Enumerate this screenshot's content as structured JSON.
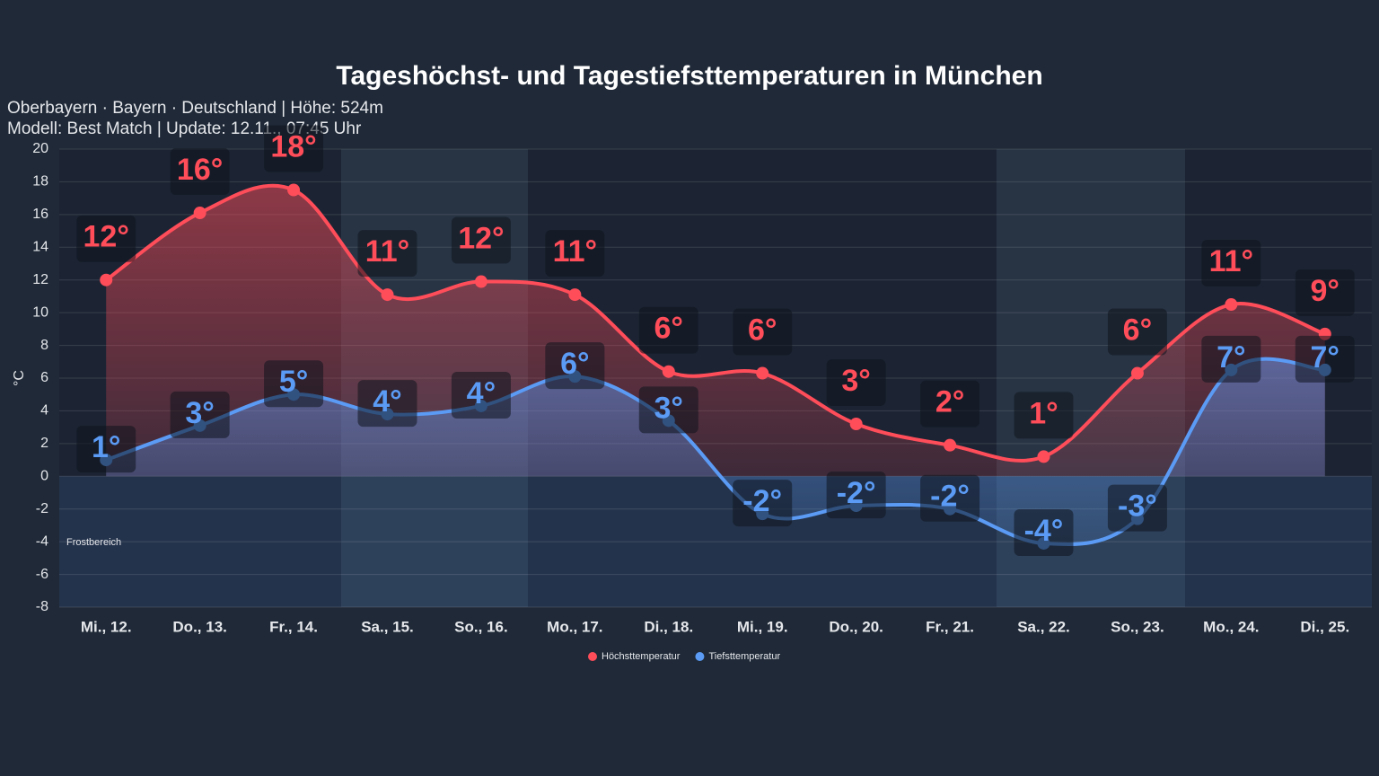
{
  "chart_data": {
    "type": "line",
    "title": "Tageshöchst- und Tagestiefsttemperaturen in München",
    "subtitle_lines": [
      "Oberbayern · Bayern · Deutschland | Höhe: 524m",
      "Modell: Best Match | Update: 12.11., 07:45 Uhr"
    ],
    "ylabel": "°C",
    "annotation": "Frostbereich",
    "categories": [
      "Mi., 12.",
      "Do., 13.",
      "Fr., 14.",
      "Sa., 15.",
      "So., 16.",
      "Mo., 17.",
      "Di., 18.",
      "Mi., 19.",
      "Do., 20.",
      "Fr., 21.",
      "Sa., 22.",
      "So., 23.",
      "Mo., 24.",
      "Di., 25."
    ],
    "series": [
      {
        "name": "Höchsttemperatur",
        "color": "#ff4d5a",
        "values": [
          12,
          16.1,
          17.5,
          11.1,
          11.9,
          11.1,
          6.4,
          6.3,
          3.2,
          1.9,
          1.2,
          6.3,
          10.5,
          8.7
        ],
        "value_labels": [
          "12°",
          "16°",
          "18°",
          "11°",
          "12°",
          "11°",
          "6°",
          "6°",
          "3°",
          "2°",
          "1°",
          "6°",
          "11°",
          "9°"
        ]
      },
      {
        "name": "Tiefsttemperatur",
        "color": "#5b9bf5",
        "values": [
          1,
          3.1,
          5,
          3.8,
          4.3,
          6.1,
          3.4,
          -2.3,
          -1.8,
          -2.0,
          -4.1,
          -2.6,
          6.5,
          6.5
        ],
        "value_labels": [
          "1°",
          "3°",
          "5°",
          "4°",
          "4°",
          "6°",
          "3°",
          "-2°",
          "-2°",
          "-2°",
          "-4°",
          "-3°",
          "7°",
          "7°"
        ]
      }
    ],
    "ylim": [
      -8,
      20
    ],
    "yticks": [
      -8,
      -6,
      -4,
      -2,
      0,
      2,
      4,
      6,
      8,
      10,
      12,
      14,
      16,
      18,
      20
    ],
    "grid": true,
    "legend": "bottom"
  }
}
